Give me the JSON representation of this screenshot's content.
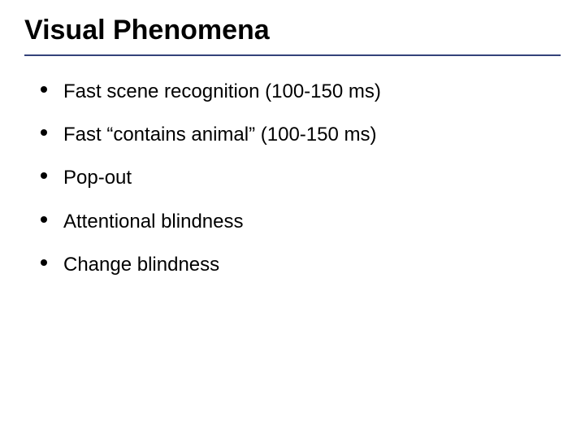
{
  "title": "Visual Phenomena",
  "title_fontsize": 34,
  "title_color": "#000000",
  "title_underline_color": "#34437a",
  "background_color": "#ffffff",
  "bullets": [
    {
      "text": "Fast scene recognition (100-150 ms)"
    },
    {
      "text": "Fast “contains animal” (100-150 ms)"
    },
    {
      "text": "Pop-out"
    },
    {
      "text": "Attentional blindness"
    },
    {
      "text": "Change blindness"
    }
  ],
  "bullet_fontsize": 24,
  "bullet_color": "#000000",
  "bullet_dot_color": "#000000"
}
